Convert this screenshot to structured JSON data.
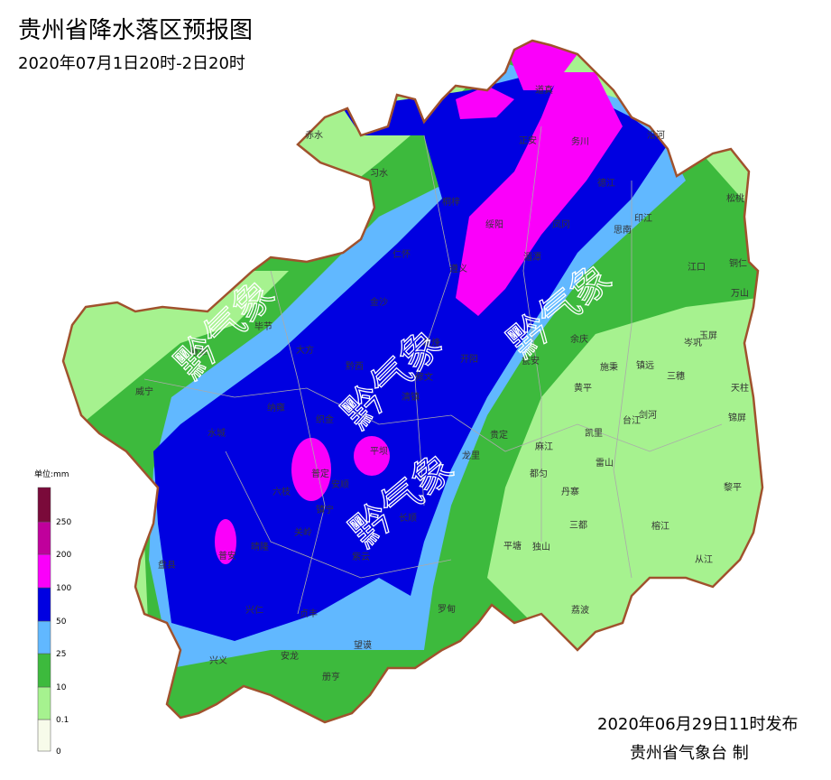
{
  "header": {
    "title": "贵州省降水落区预报图",
    "subtitle": "2020年07月1日20时-2日20时"
  },
  "legend": {
    "unit": "单位:mm",
    "ticks": [
      0,
      0.1,
      10,
      25,
      50,
      100,
      200,
      250
    ],
    "colors": [
      "#f7fbea",
      "#a6f28f",
      "#3dba3d",
      "#61b8ff",
      "#0000e1",
      "#fa00fa",
      "#c0009c",
      "#7a0a3a"
    ]
  },
  "watermark": "黔气象",
  "cities": [
    "赤水",
    "习水",
    "桐梓",
    "正安",
    "道真",
    "务川",
    "沿河",
    "松桃",
    "德江",
    "印江",
    "思南",
    "凤冈",
    "绥阳",
    "湄潭",
    "遵义",
    "仁怀",
    "金沙",
    "毕节",
    "赫章",
    "大方",
    "黔西",
    "威宁",
    "纳雍",
    "织金",
    "水城",
    "普定",
    "安顺",
    "六枝",
    "镇宁",
    "关岭",
    "晴隆",
    "普安",
    "盘县",
    "兴仁",
    "贞丰",
    "兴义",
    "安龙",
    "册亨",
    "望谟",
    "紫云",
    "长顺",
    "罗甸",
    "平塘",
    "独山",
    "荔波",
    "三都",
    "丹寨",
    "都匀",
    "麻江",
    "凯里",
    "雷山",
    "榕江",
    "从江",
    "黎平",
    "锦屏",
    "天柱",
    "三穗",
    "剑河",
    "台江",
    "黄平",
    "施秉",
    "镇远",
    "岑巩",
    "玉屏",
    "万山",
    "铜仁",
    "江口",
    "余庆",
    "瓮安",
    "开阳",
    "贵定",
    "龙里",
    "清镇",
    "修文",
    "息烽",
    "平坝"
  ],
  "footer": {
    "issued": "2020年06月29日11时发布",
    "agency": "贵州省气象台 制"
  }
}
